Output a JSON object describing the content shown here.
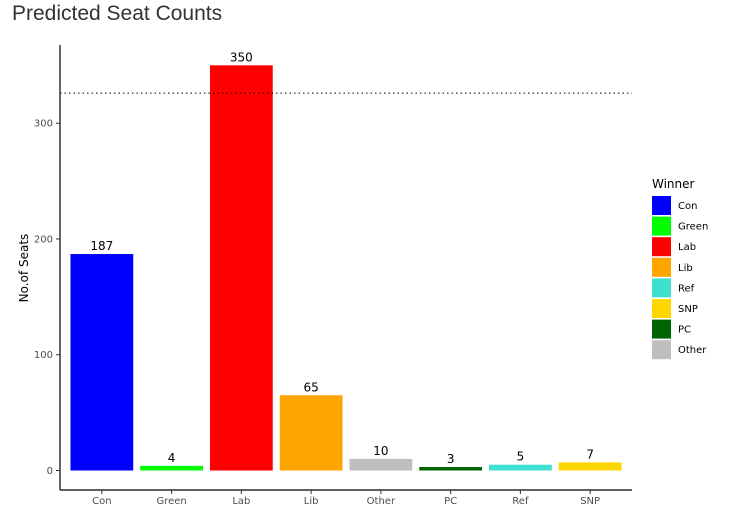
{
  "chart_data": {
    "type": "bar",
    "title": "Predicted Seat Counts",
    "ylabel": "No.of Seats",
    "xlabel": "",
    "ylim": [
      0,
      365
    ],
    "yticks": [
      0,
      100,
      200,
      300
    ],
    "reference_line": 326,
    "categories": [
      "Con",
      "Green",
      "Lab",
      "Lib",
      "Other",
      "PC",
      "Ref",
      "SNP"
    ],
    "values": [
      187,
      4,
      350,
      65,
      10,
      3,
      5,
      7
    ],
    "colors": [
      "#0000ff",
      "#00ff00",
      "#ff0000",
      "#ffa500",
      "#bebebe",
      "#006400",
      "#40e0d0",
      "#ffd700"
    ],
    "legend": {
      "title": "Winner",
      "placement": "right",
      "items": [
        {
          "label": "Con",
          "color": "#0000ff"
        },
        {
          "label": "Green",
          "color": "#00ff00"
        },
        {
          "label": "Lab",
          "color": "#ff0000"
        },
        {
          "label": "Lib",
          "color": "#ffa500"
        },
        {
          "label": "Ref",
          "color": "#40e0d0"
        },
        {
          "label": "SNP",
          "color": "#ffd700"
        },
        {
          "label": "PC",
          "color": "#006400"
        },
        {
          "label": "Other",
          "color": "#bebebe"
        }
      ]
    },
    "grid": false
  }
}
